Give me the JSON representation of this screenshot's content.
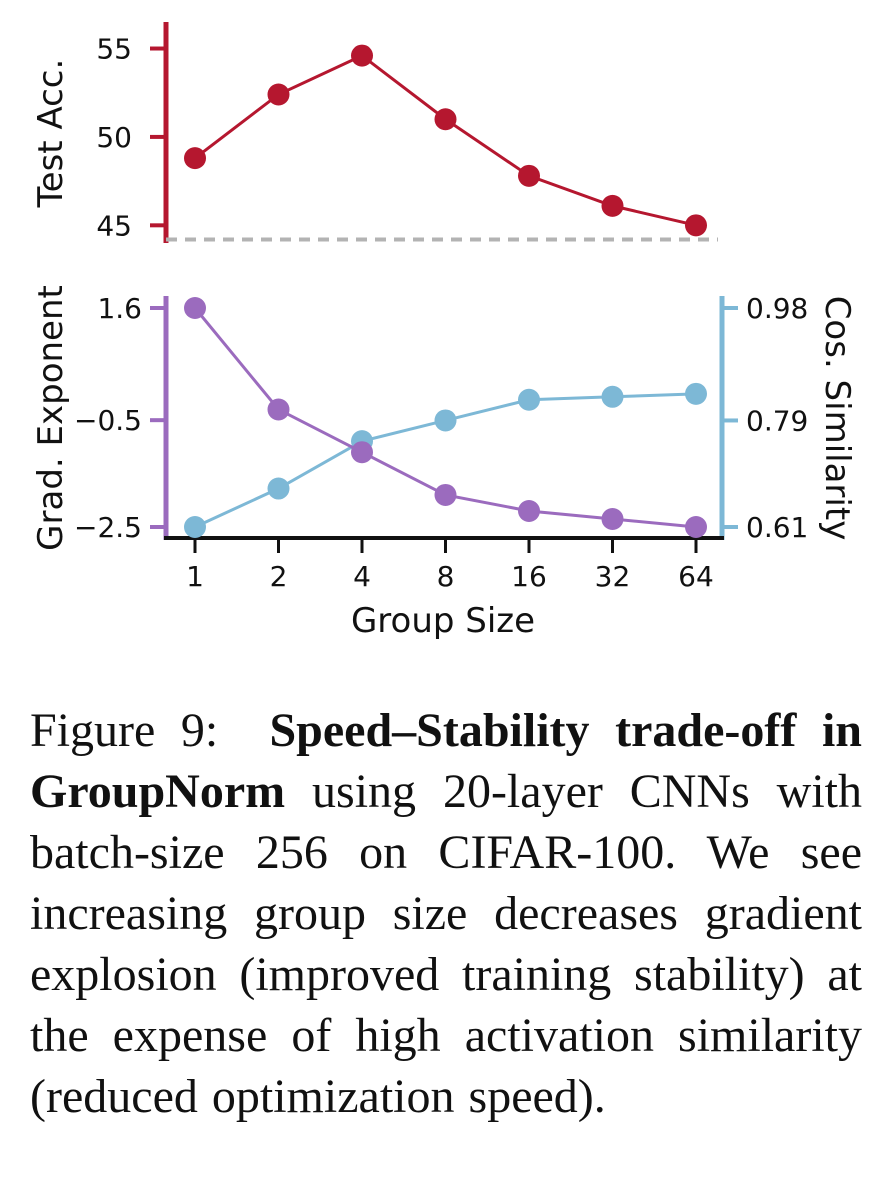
{
  "chart_data": [
    {
      "type": "line",
      "categories": [
        "1",
        "2",
        "4",
        "8",
        "16",
        "32",
        "64"
      ],
      "series": [
        {
          "values": [
            48.8,
            52.4,
            54.6,
            51.0,
            47.8,
            46.1,
            45.0
          ],
          "color": "#b5172f"
        }
      ],
      "ylabel": "Test Acc.",
      "yticks": [
        "45",
        "50",
        "55"
      ],
      "ylim": [
        44,
        56.5
      ],
      "reference_line": {
        "y": 44.2,
        "style": "dashed",
        "color": "#b3b3b3"
      }
    },
    {
      "type": "line",
      "categories": [
        "1",
        "2",
        "4",
        "8",
        "16",
        "32",
        "64"
      ],
      "xlabel": "Group Size",
      "series": [
        {
          "axis": "left",
          "values": [
            1.6,
            -0.3,
            -1.1,
            -1.9,
            -2.2,
            -2.35,
            -2.5
          ],
          "color": "#9b6bbe"
        },
        {
          "axis": "right",
          "values": [
            0.61,
            0.675,
            0.755,
            0.79,
            0.825,
            0.83,
            0.835
          ],
          "color": "#7db8d6"
        }
      ],
      "ylabel_left": "Grad. Exponent",
      "yticks_left": [
        "1.6",
        "−0.5",
        "−2.5"
      ],
      "ylim_left": [
        -2.5,
        1.6
      ],
      "ylabel_right": "Cos. Similarity",
      "yticks_right": [
        "0.98",
        "0.79",
        "0.61"
      ],
      "ylim_right": [
        0.61,
        0.98
      ]
    }
  ],
  "caption": {
    "prefix": "Figure 9:",
    "title": "Speed–Stability trade-off in GroupNorm",
    "body": "using 20-layer CNNs with batch-size 256 on CIFAR-100. We see increasing group size decreases gradient explosion (improved training stability) at the expense of high activation similarity (reduced optimization speed)."
  }
}
